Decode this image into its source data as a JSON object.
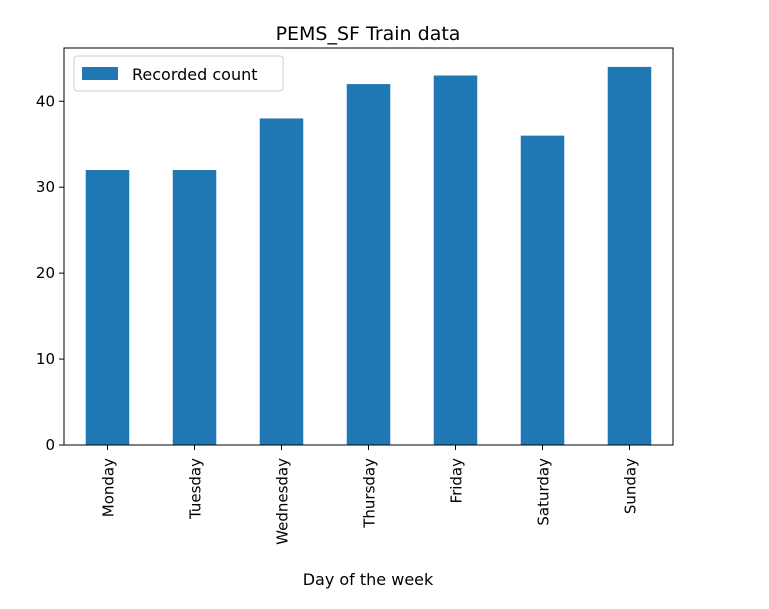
{
  "chart_data": {
    "type": "bar",
    "title": "PEMS_SF Train data",
    "xlabel": "Day of the week",
    "ylabel": "",
    "categories": [
      "Monday",
      "Tuesday",
      "Wednesday",
      "Thursday",
      "Friday",
      "Saturday",
      "Sunday"
    ],
    "series": [
      {
        "name": "Recorded count",
        "values": [
          32,
          32,
          38,
          42,
          43,
          36,
          44
        ]
      }
    ],
    "ylim": [
      0,
      46.2
    ],
    "yticks": [
      0,
      10,
      20,
      30,
      40
    ],
    "grid": false,
    "legend_position": "upper-left",
    "colors": {
      "bar": "#1f77b4"
    }
  }
}
